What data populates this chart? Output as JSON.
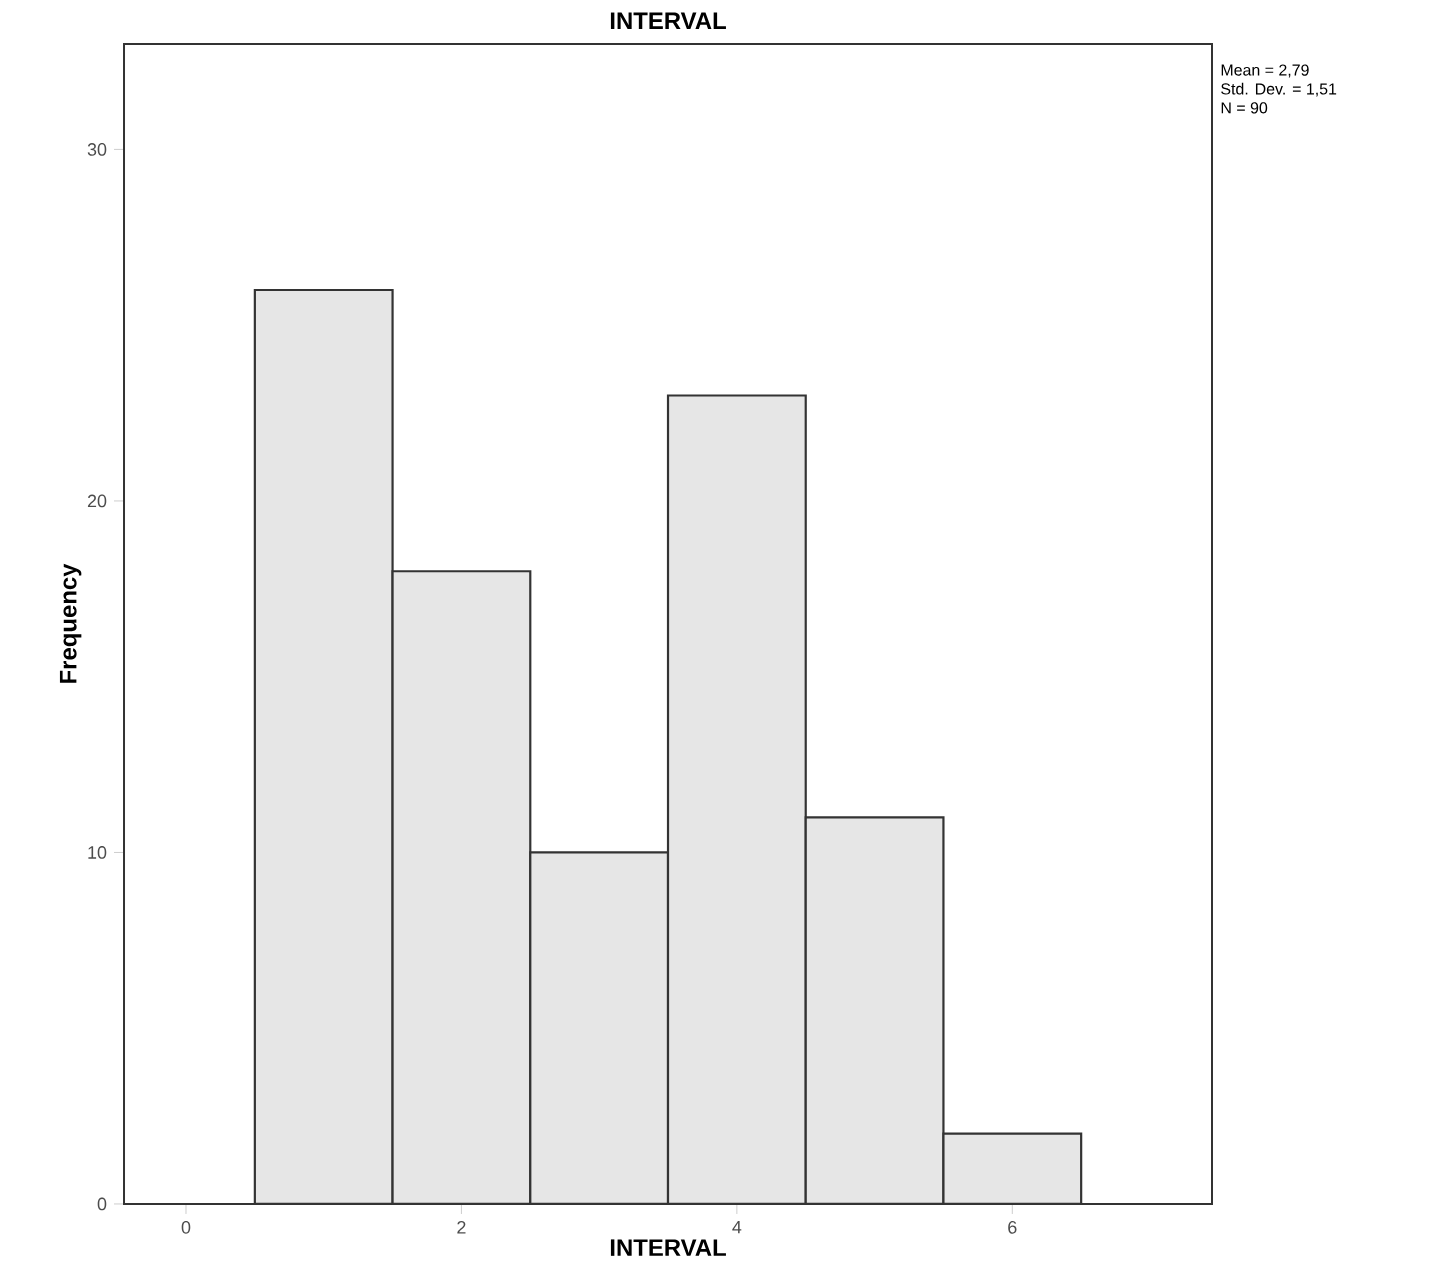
{
  "chart_data": {
    "type": "histogram",
    "title": "INTERVAL",
    "xlabel": "INTERVAL",
    "ylabel": "Frequency",
    "bins": [
      0.5,
      1.5,
      2.5,
      3.5,
      4.5,
      5.5,
      6.5
    ],
    "values": [
      26,
      18,
      10,
      23,
      11,
      2
    ],
    "color": "#e6e6e6",
    "xlim": [
      -0.45,
      7.45
    ],
    "ylim": [
      0,
      33
    ],
    "xticks": [
      0,
      2,
      4,
      6
    ],
    "yticks": [
      0,
      10,
      20,
      30
    ],
    "annotations": [
      "Mean = 2,79",
      "Std. Dev. = 1,51",
      "N = 90"
    ]
  }
}
